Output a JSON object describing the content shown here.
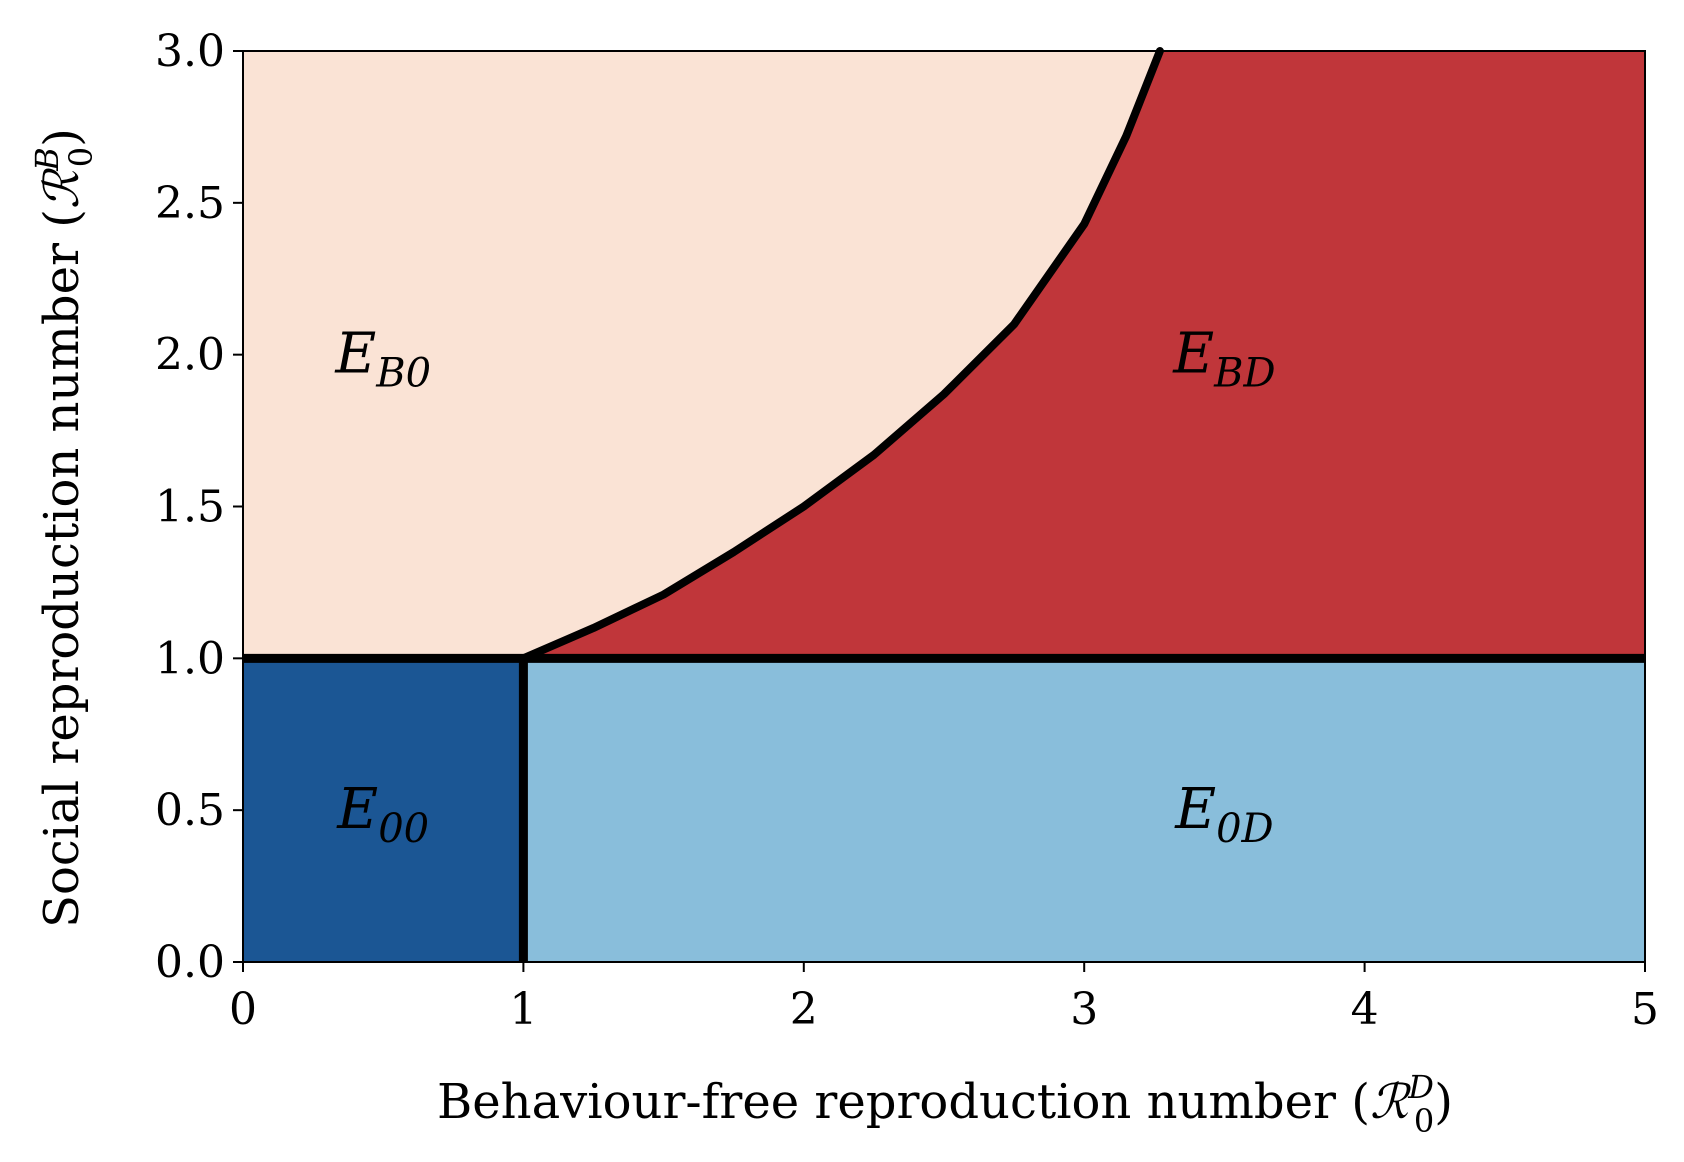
{
  "chart_data": {
    "type": "heatmap",
    "title": "",
    "xlabel": {
      "text": "Behaviour-free reproduction number (",
      "symbol": "ℛ",
      "sub": "0",
      "sup": "D",
      "close": ")"
    },
    "ylabel": {
      "text": "Social reproduction number (",
      "symbol": "ℛ",
      "sub": "0",
      "sup": "B",
      "close": ")"
    },
    "xlim": [
      0,
      5
    ],
    "ylim": [
      0,
      3
    ],
    "xticks": [
      0,
      1,
      2,
      3,
      4,
      5
    ],
    "xtick_labels": [
      "0",
      "1",
      "2",
      "3",
      "4",
      "5"
    ],
    "yticks": [
      0.0,
      0.5,
      1.0,
      1.5,
      2.0,
      2.5,
      3.0
    ],
    "ytick_labels": [
      "0.0",
      "0.5",
      "1.0",
      "1.5",
      "2.0",
      "2.5",
      "3.0"
    ],
    "grid": false,
    "regions": [
      {
        "name": "E00",
        "label_main": "E",
        "label_sub": "00",
        "color": "#1b5694",
        "label_at": [
          0.5,
          0.5
        ]
      },
      {
        "name": "E0D",
        "label_main": "E",
        "label_sub": "0D",
        "color": "#89bedb",
        "label_at": [
          3.5,
          0.5
        ]
      },
      {
        "name": "EB0",
        "label_main": "E",
        "label_sub": "B0",
        "color": "#fae3d5",
        "label_at": [
          0.5,
          2.0
        ]
      },
      {
        "name": "EBD",
        "label_main": "E",
        "label_sub": "BD",
        "color": "#c0363a",
        "label_at": [
          3.5,
          2.0
        ]
      }
    ],
    "boundaries": {
      "horizontal_y": 1.0,
      "vertical_x": 1.0,
      "curve": [
        {
          "x": 1.0,
          "y": 1.0
        },
        {
          "x": 1.25,
          "y": 1.1
        },
        {
          "x": 1.5,
          "y": 1.21
        },
        {
          "x": 1.75,
          "y": 1.35
        },
        {
          "x": 2.0,
          "y": 1.5
        },
        {
          "x": 2.25,
          "y": 1.67
        },
        {
          "x": 2.5,
          "y": 1.87
        },
        {
          "x": 2.75,
          "y": 2.1
        },
        {
          "x": 3.0,
          "y": 2.43
        },
        {
          "x": 3.15,
          "y": 2.72
        },
        {
          "x": 3.27,
          "y": 3.0
        }
      ],
      "color": "#000000"
    }
  }
}
